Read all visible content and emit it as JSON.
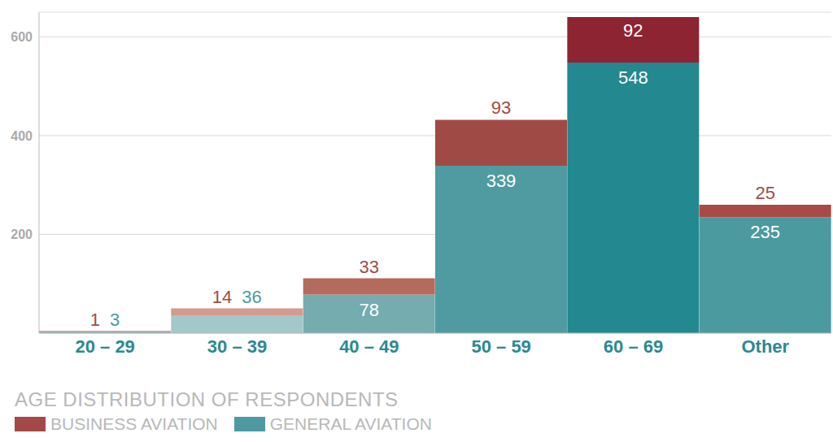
{
  "chart_data": {
    "type": "bar",
    "title": "AGE DISTRIBUTION OF RESPONDENTS",
    "categories": [
      "20 – 29",
      "30 – 39",
      "40 – 49",
      "50 – 59",
      "60 – 69",
      "Other"
    ],
    "series": [
      {
        "name": "BUSINESS AVIATION",
        "color": "#a34a47",
        "colors": [
          "#b5544f",
          "#d49a8f",
          "#b46a5c",
          "#a04a46",
          "#8d2431",
          "#a84a46"
        ],
        "values": [
          1,
          14,
          33,
          93,
          92,
          25
        ]
      },
      {
        "name": "GENERAL AVIATION",
        "color": "#4e9aa0",
        "colors": [
          "#7fb3b6",
          "#a3c8ca",
          "#74acb0",
          "#4f9ba1",
          "#23888f",
          "#4b9aa0"
        ],
        "values": [
          3,
          36,
          78,
          339,
          548,
          235
        ]
      }
    ],
    "ylim": [
      0,
      650
    ],
    "yticks": [
      200,
      400,
      600
    ],
    "grid": true,
    "stacked": true,
    "data_labels": true
  }
}
